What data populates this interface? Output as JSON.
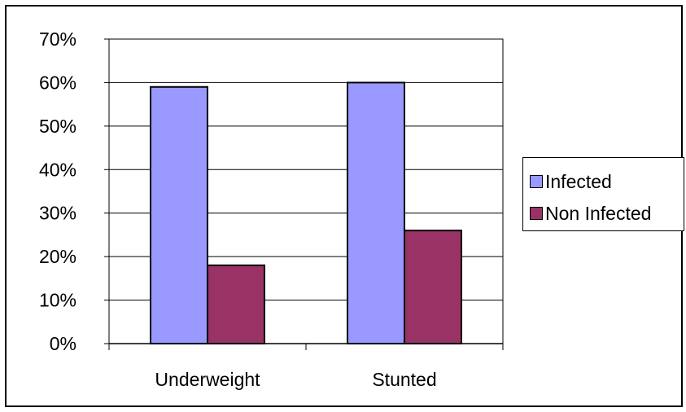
{
  "chart_data": {
    "type": "bar",
    "categories": [
      "Underweight",
      "Stunted"
    ],
    "series": [
      {
        "name": "Infected",
        "values": [
          59,
          60
        ],
        "color": "#9999ff"
      },
      {
        "name": "Non Infected",
        "values": [
          18,
          26
        ],
        "color": "#993366"
      }
    ],
    "ylim": [
      0,
      70
    ],
    "yticks": [
      "0%",
      "10%",
      "20%",
      "30%",
      "40%",
      "50%",
      "60%",
      "70%"
    ],
    "grid": true,
    "legend_position": "right",
    "plot_background": "#ffffff",
    "gridline_color": "#000000"
  }
}
